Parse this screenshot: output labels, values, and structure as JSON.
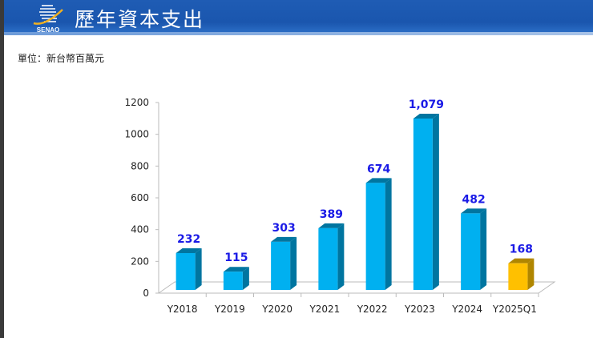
{
  "header": {
    "title": "歷年資本支出",
    "logo_text": "SENAO"
  },
  "unit_label": "單位：新台幣百萬元",
  "colors": {
    "bar": "#00b0f0",
    "bar_side": "#0075a0",
    "highlight": "#ffc000",
    "highlight_side": "#b08600",
    "label": "#1a1ae6",
    "header": "#1a56ae"
  },
  "chart_data": {
    "type": "bar",
    "style": "3d-column",
    "categories": [
      "Y2018",
      "Y2019",
      "Y2020",
      "Y2021",
      "Y2022",
      "Y2023",
      "Y2024",
      "Y2025Q1"
    ],
    "values": [
      232,
      115,
      303,
      389,
      674,
      1079,
      482,
      168
    ],
    "data_labels": [
      "232",
      "115",
      "303",
      "389",
      "674",
      "1,079",
      "482",
      "168"
    ],
    "highlight_index": 7,
    "ylim": [
      0,
      1200
    ],
    "yticks": [
      "0",
      "200",
      "400",
      "600",
      "800",
      "1000",
      "1200"
    ],
    "grid": false,
    "legend": "none",
    "title": "",
    "xlabel": "",
    "ylabel": ""
  }
}
